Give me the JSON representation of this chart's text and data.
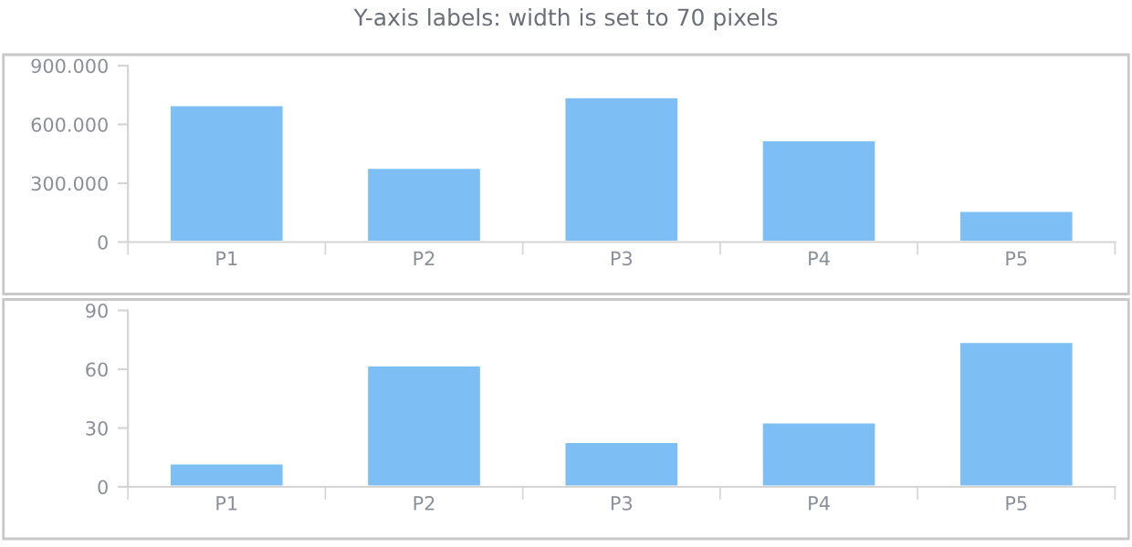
{
  "chart_data": [
    {
      "type": "bar",
      "title": "Y-axis labels: width is set to 70 pixels",
      "categories": [
        "P1",
        "P2",
        "P3",
        "P4",
        "P5"
      ],
      "values": [
        700000,
        380000,
        740000,
        520000,
        160000
      ],
      "color": "#7dbef5",
      "ylim": [
        0,
        900000
      ],
      "yticks": [
        0,
        {
          "value": 300000,
          "label": "300.000"
        },
        {
          "value": 600000,
          "label": "600.000"
        },
        {
          "value": 900000,
          "label": "900.000"
        }
      ],
      "grid": false
    },
    {
      "type": "bar",
      "categories": [
        "P1",
        "P2",
        "P3",
        "P4",
        "P5"
      ],
      "values": [
        12,
        62,
        23,
        33,
        74
      ],
      "color": "#7dbef5",
      "ylim": [
        0,
        90
      ],
      "yticks": [
        0,
        30,
        60,
        90
      ],
      "grid": false
    }
  ]
}
